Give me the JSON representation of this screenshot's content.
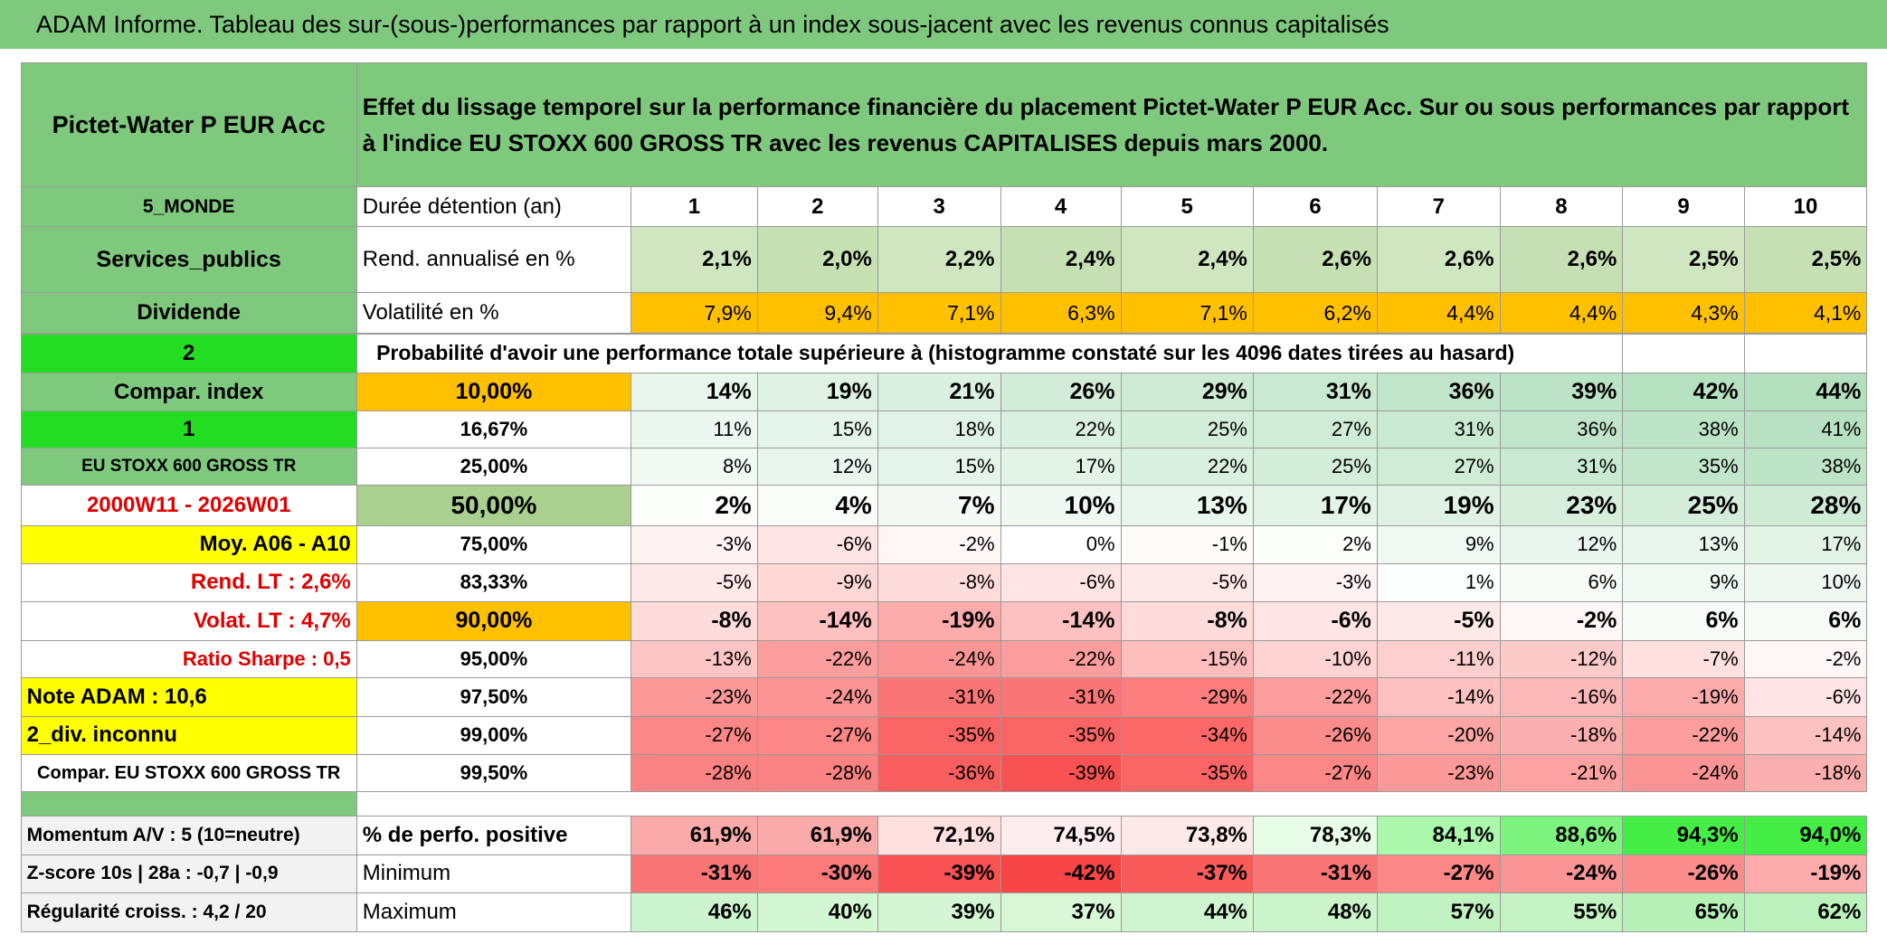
{
  "title": "ADAM Informe. Tableau des sur-(sous-)performances par rapport à un index sous-jacent avec les revenus connus capitalisés",
  "fund": "Pictet-Water P EUR Acc",
  "description": "Effet du lissage temporel sur la performance financière du placement Pictet-Water P EUR Acc. Sur ou sous performances par rapport à l'indice EU STOXX 600 GROSS TR avec les revenus CAPITALISES depuis mars 2000.",
  "side_labels": [
    "5_MONDE",
    "Services_publics",
    "Dividende",
    "2",
    "Compar. index",
    "1",
    "EU STOXX 600 GROSS TR",
    "2000W11 - 2026W01",
    "Moy. A06 - A10",
    "Rend. LT :   2,6%",
    "Volat. LT :   4,7%",
    "Ratio Sharpe :    0,5",
    "Note ADAM : 10,6",
    "2_div. inconnu",
    "Compar. EU STOXX 600 GROSS TR"
  ],
  "footer_labels": [
    "Momentum A/V : 5 (10=neutre)",
    "Z-score 10s | 28a : -0,7 | -0,9",
    "Régularité croiss. : 4,2 / 20"
  ],
  "stats": [
    {
      "label": "Durée détention (an)",
      "values": [
        1,
        2,
        3,
        4,
        5,
        6,
        7,
        8,
        9,
        10
      ]
    },
    {
      "label": "Rend. annualisé en %",
      "values": [
        "2,1%",
        "2,0%",
        "2,2%",
        "2,4%",
        "2,4%",
        "2,6%",
        "2,6%",
        "2,6%",
        "2,5%",
        "2,5%"
      ]
    },
    {
      "label": "Volatilité en %",
      "values": [
        "7,9%",
        "9,4%",
        "7,1%",
        "6,3%",
        "7,1%",
        "6,2%",
        "4,4%",
        "4,4%",
        "4,3%",
        "4,1%"
      ]
    }
  ],
  "probability_caption": "Probabilité d'avoir une performance totale supérieure à (histogramme constaté sur les 4096 dates tirées au hasard)",
  "percentile_rows": [
    {
      "level": "10,00%",
      "values": [
        "14%",
        "19%",
        "21%",
        "26%",
        "29%",
        "31%",
        "36%",
        "39%",
        "42%",
        "44%"
      ]
    },
    {
      "level": "16,67%",
      "values": [
        "11%",
        "15%",
        "18%",
        "22%",
        "25%",
        "27%",
        "31%",
        "36%",
        "38%",
        "41%"
      ]
    },
    {
      "level": "25,00%",
      "values": [
        "8%",
        "12%",
        "15%",
        "17%",
        "22%",
        "25%",
        "27%",
        "31%",
        "35%",
        "38%"
      ]
    },
    {
      "level": "50,00%",
      "values": [
        "2%",
        "4%",
        "7%",
        "10%",
        "13%",
        "17%",
        "19%",
        "23%",
        "25%",
        "28%"
      ]
    },
    {
      "level": "75,00%",
      "values": [
        "-3%",
        "-6%",
        "-2%",
        "0%",
        "-1%",
        "2%",
        "9%",
        "12%",
        "13%",
        "17%"
      ]
    },
    {
      "level": "83,33%",
      "values": [
        "-5%",
        "-9%",
        "-8%",
        "-6%",
        "-5%",
        "-3%",
        "1%",
        "6%",
        "9%",
        "10%"
      ]
    },
    {
      "level": "90,00%",
      "values": [
        "-8%",
        "-14%",
        "-19%",
        "-14%",
        "-8%",
        "-6%",
        "-5%",
        "-2%",
        "6%",
        "6%"
      ]
    },
    {
      "level": "95,00%",
      "values": [
        "-13%",
        "-22%",
        "-24%",
        "-22%",
        "-15%",
        "-10%",
        "-11%",
        "-12%",
        "-7%",
        "-2%"
      ]
    },
    {
      "level": "97,50%",
      "values": [
        "-23%",
        "-24%",
        "-31%",
        "-31%",
        "-29%",
        "-22%",
        "-14%",
        "-16%",
        "-19%",
        "-6%"
      ]
    },
    {
      "level": "99,00%",
      "values": [
        "-27%",
        "-27%",
        "-35%",
        "-35%",
        "-34%",
        "-26%",
        "-20%",
        "-18%",
        "-22%",
        "-14%"
      ]
    },
    {
      "level": "99,50%",
      "values": [
        "-28%",
        "-28%",
        "-36%",
        "-39%",
        "-35%",
        "-27%",
        "-23%",
        "-21%",
        "-24%",
        "-18%"
      ]
    }
  ],
  "footer_rows": [
    {
      "label": "% de perfo. positive",
      "values": [
        "61,9%",
        "61,9%",
        "72,1%",
        "74,5%",
        "73,8%",
        "78,3%",
        "84,1%",
        "88,6%",
        "94,3%",
        "94,0%"
      ]
    },
    {
      "label": "Minimum",
      "values": [
        "-31%",
        "-30%",
        "-39%",
        "-42%",
        "-37%",
        "-31%",
        "-27%",
        "-24%",
        "-26%",
        "-19%"
      ]
    },
    {
      "label": "Maximum",
      "values": [
        "46%",
        "40%",
        "39%",
        "37%",
        "44%",
        "48%",
        "57%",
        "55%",
        "65%",
        "62%"
      ]
    }
  ]
}
